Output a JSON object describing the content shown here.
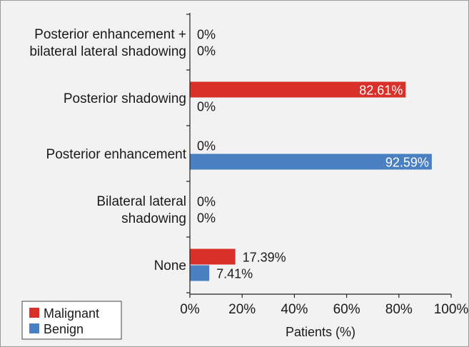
{
  "chart_data": {
    "type": "bar",
    "orientation": "horizontal",
    "categories": [
      [
        "Posterior enhancement +",
        "bilateral lateral shadowing"
      ],
      [
        "Posterior shadowing"
      ],
      [
        "Posterior enhancement"
      ],
      [
        "Bilateral lateral",
        "shadowing"
      ],
      [
        "None"
      ]
    ],
    "series": [
      {
        "name": "Malignant",
        "color": "#d9302a",
        "values": [
          0,
          82.61,
          0,
          0,
          17.39
        ],
        "labels": [
          "0%",
          "82.61%",
          "0%",
          "0%",
          "17.39%"
        ]
      },
      {
        "name": "Benign",
        "color": "#4a7fc1",
        "values": [
          0,
          0,
          92.59,
          0,
          7.41
        ],
        "labels": [
          "0%",
          "0%",
          "92.59%",
          "0%",
          "7.41%"
        ]
      }
    ],
    "xlabel": "Patients (%)",
    "xlim": [
      0,
      100
    ],
    "xticks": [
      0,
      20,
      40,
      60,
      80,
      100
    ],
    "xtick_labels": [
      "0%",
      "20%",
      "40%",
      "60%",
      "80%",
      "100%"
    ],
    "grid": false,
    "legend_position": "bottom-left"
  }
}
